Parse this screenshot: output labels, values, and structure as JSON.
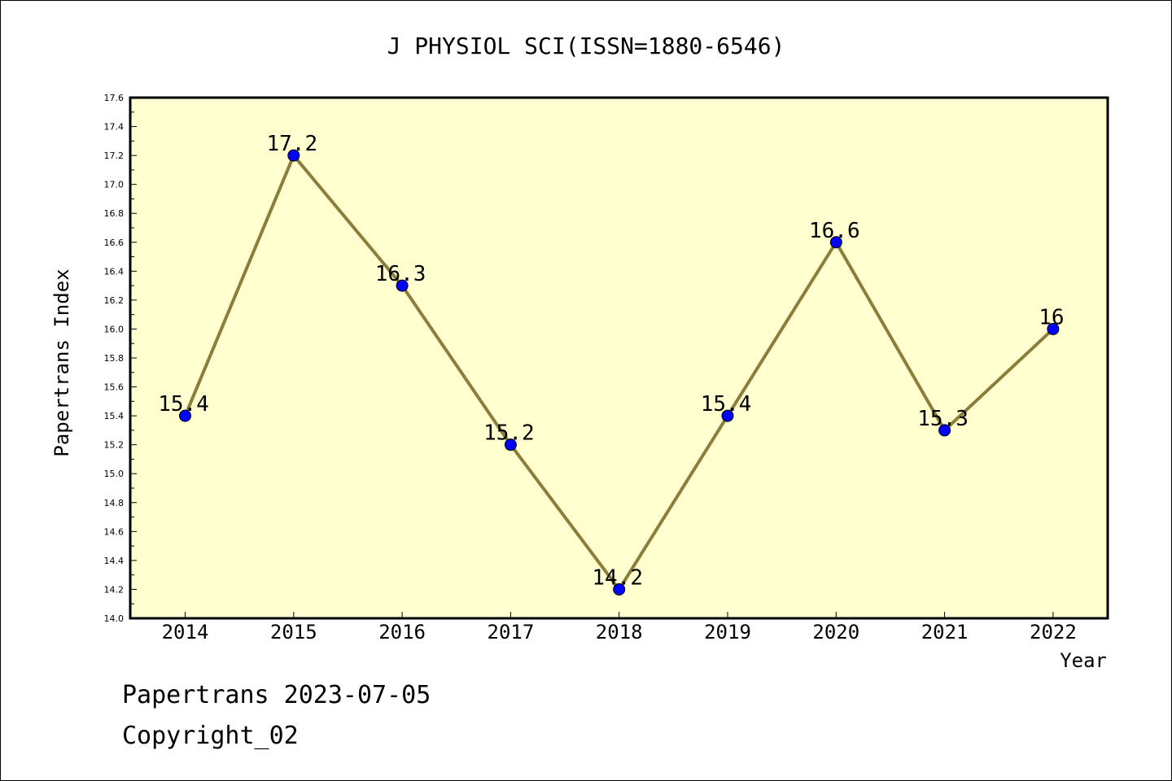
{
  "chart_data": {
    "type": "line",
    "title": "J PHYSIOL SCI(ISSN=1880-6546)",
    "xlabel": "Year",
    "ylabel": "Papertrans Index",
    "x": [
      "2014",
      "2015",
      "2016",
      "2017",
      "2018",
      "2019",
      "2020",
      "2021",
      "2022"
    ],
    "series": [
      {
        "values": [
          15.4,
          17.2,
          16.3,
          15.2,
          14.2,
          15.4,
          16.6,
          15.3,
          16.0
        ]
      }
    ],
    "data_labels": [
      "15.4",
      "17.2",
      "16.3",
      "15.2",
      "14.2",
      "15.4",
      "16.6",
      "15.3",
      "16"
    ],
    "ylim": [
      14.0,
      17.6
    ],
    "yticks": [
      "14.0",
      "14.2",
      "14.4",
      "14.6",
      "14.8",
      "15.0",
      "15.2",
      "15.4",
      "15.6",
      "15.8",
      "16.0",
      "16.2",
      "16.4",
      "16.6",
      "16.8",
      "17.0",
      "17.2",
      "17.4",
      "17.6"
    ],
    "grid": false,
    "colors": {
      "plot_background": "#ffffd0",
      "line": "#8b7d3a",
      "marker": "#0000ff"
    }
  },
  "footer": {
    "date_line": "Papertrans 2023-07-05",
    "copyright": "Copyright_02"
  }
}
